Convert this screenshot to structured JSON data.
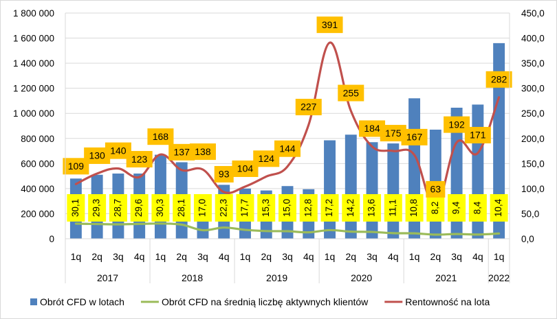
{
  "chart_data": {
    "type": "bar",
    "categories": [
      "1q",
      "2q",
      "3q",
      "4q",
      "1q",
      "2q",
      "3q",
      "4q",
      "1q",
      "2q",
      "3q",
      "4q",
      "1q",
      "2q",
      "3q",
      "4q",
      "1q",
      "2q",
      "3q",
      "4q",
      "1q"
    ],
    "year_groups": [
      {
        "label": "2017",
        "count": 4
      },
      {
        "label": "2018",
        "count": 4
      },
      {
        "label": "2019",
        "count": 4
      },
      {
        "label": "2020",
        "count": 4
      },
      {
        "label": "2021",
        "count": 4
      },
      {
        "label": "2022",
        "count": 1
      }
    ],
    "y_left": {
      "ylim": [
        0,
        1800000
      ],
      "ticks": [
        "0",
        "200 000",
        "400 000",
        "600 000",
        "800 000",
        "1 000 000",
        "1 200 000",
        "1 400 000",
        "1 600 000",
        "1 800 000"
      ]
    },
    "y_right": {
      "ylim": [
        0,
        450
      ],
      "ticks": [
        "0,0",
        "50,0",
        "100,0",
        "150,0",
        "200,0",
        "250,0",
        "300,0",
        "350,0",
        "400,0",
        "450,0"
      ]
    },
    "grid": true,
    "legend_position": "bottom",
    "series": [
      {
        "name": "Obrót CFD w lotach",
        "type": "bar",
        "axis": "left",
        "color": "#4f81bd",
        "values": [
          480000,
          510000,
          520000,
          520000,
          670000,
          610000,
          340000,
          430000,
          400000,
          385000,
          420000,
          395000,
          785000,
          830000,
          770000,
          760000,
          1120000,
          870000,
          1045000,
          1070000,
          1560000
        ]
      },
      {
        "name": "Obrót CFD na średnią liczbę aktywnych klientów",
        "type": "line",
        "axis": "right",
        "color": "#9bbb59",
        "values": [
          30.1,
          29.3,
          28.7,
          29.6,
          30.3,
          28.1,
          17.0,
          22.3,
          17.7,
          15.3,
          15.0,
          12.8,
          17.2,
          14.2,
          13.6,
          11.1,
          10.8,
          8.2,
          9.4,
          8.4,
          10.4
        ],
        "labels": [
          "30,1",
          "29,3",
          "28,7",
          "29,6",
          "30,3",
          "28,1",
          "17,0",
          "22,3",
          "17,7",
          "15,3",
          "15,0",
          "12,8",
          "17,2",
          "14,2",
          "13,6",
          "11,1",
          "10,8",
          "8,2",
          "9,4",
          "8,4",
          "10,4"
        ],
        "label_color": "#ffff00"
      },
      {
        "name": "Rentowność na lota",
        "type": "line",
        "axis": "right",
        "color": "#c0504d",
        "values": [
          109,
          130,
          140,
          123,
          168,
          137,
          138,
          93,
          104,
          124,
          144,
          227,
          391,
          255,
          184,
          175,
          167,
          63,
          192,
          171,
          282
        ],
        "labels": [
          "109",
          "130",
          "140",
          "123",
          "168",
          "137",
          "138",
          "93",
          "104",
          "124",
          "144",
          "227",
          "391",
          "255",
          "184",
          "175",
          "167",
          "63",
          "192",
          "171",
          "282"
        ],
        "label_color": "#ffc000"
      }
    ]
  }
}
